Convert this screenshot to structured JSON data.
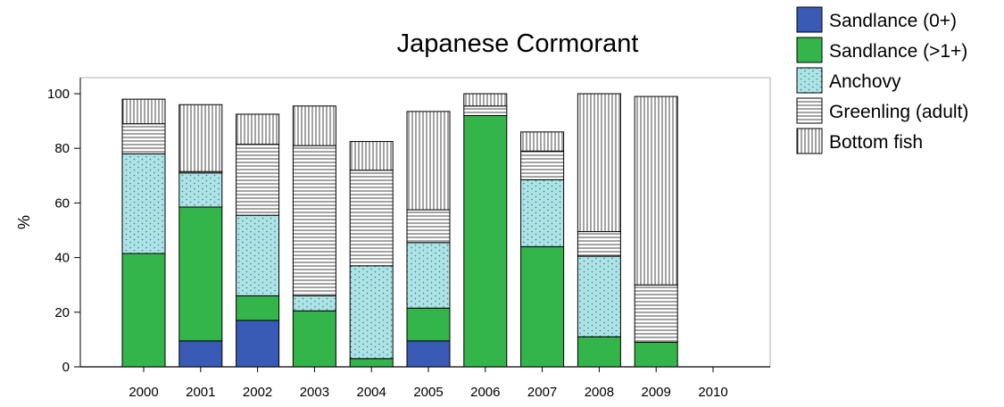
{
  "chart_data": {
    "type": "bar",
    "stacked": true,
    "title": "Japanese Cormorant",
    "xlabel": "",
    "ylabel": "%",
    "ylim": [
      0,
      100
    ],
    "yticks": [
      0,
      20,
      40,
      60,
      80,
      100
    ],
    "categories": [
      "2000",
      "2001",
      "2002",
      "2003",
      "2004",
      "2005",
      "2006",
      "2007",
      "2008",
      "2009",
      "2010"
    ],
    "legend_position": "top-right",
    "grid": false,
    "series": [
      {
        "name": "Sandlance (0+)",
        "color": "#3a5bb5",
        "pattern": "solid",
        "values": [
          0,
          9.5,
          17,
          0,
          0,
          9.5,
          0,
          0,
          0,
          0,
          0
        ]
      },
      {
        "name": "Sandlance (>1+)",
        "color": "#33b54a",
        "pattern": "solid",
        "values": [
          41.5,
          49,
          9,
          20.5,
          3,
          12,
          92,
          44,
          11,
          9,
          0
        ]
      },
      {
        "name": "Anchovy",
        "color": "#aee3e6",
        "pattern": "dots",
        "values": [
          36.5,
          12.5,
          29.5,
          5.5,
          34,
          24,
          0,
          24.5,
          29.5,
          0,
          0
        ]
      },
      {
        "name": "Greenling (adult)",
        "color": "#ffffff",
        "pattern": "horizontal",
        "values": [
          11,
          0.5,
          26,
          55,
          35,
          12,
          3.5,
          10.5,
          9,
          21,
          0
        ]
      },
      {
        "name": "Bottom fish",
        "color": "#ffffff",
        "pattern": "vertical",
        "values": [
          9,
          24.5,
          11,
          14.5,
          10.5,
          36,
          4.5,
          7,
          50.5,
          69,
          0
        ]
      }
    ]
  }
}
